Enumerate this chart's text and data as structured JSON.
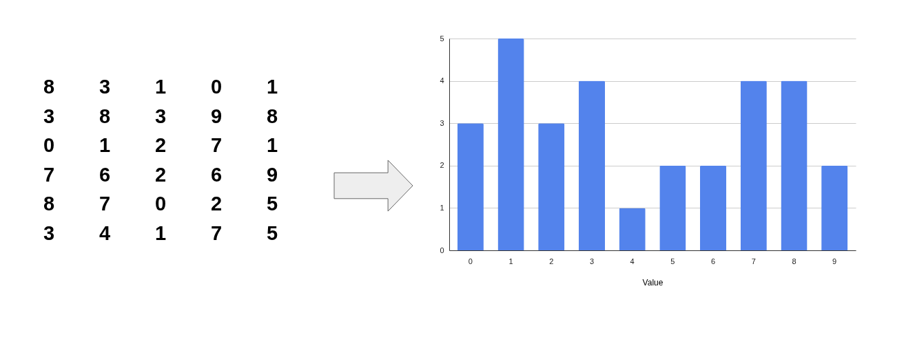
{
  "chart_data": [
    {
      "type": "other",
      "annotations": [
        "8 3 1 0 1",
        "3 8 3 9 8",
        "0 1 2 7 1",
        "7 6 2 6 9",
        "8 7 0 2 5",
        "3 4 1 7 5"
      ]
    },
    {
      "type": "bar",
      "xlabel": "Value",
      "categories": [
        "0",
        "1",
        "2",
        "3",
        "4",
        "5",
        "6",
        "7",
        "8",
        "9"
      ],
      "values": [
        3,
        5,
        3,
        4,
        1,
        2,
        2,
        4,
        4,
        2
      ],
      "color": "#5383ec",
      "ylim": [
        0,
        5
      ],
      "yticks": [
        0,
        1,
        2,
        3,
        4,
        5
      ],
      "grid": "y"
    }
  ]
}
